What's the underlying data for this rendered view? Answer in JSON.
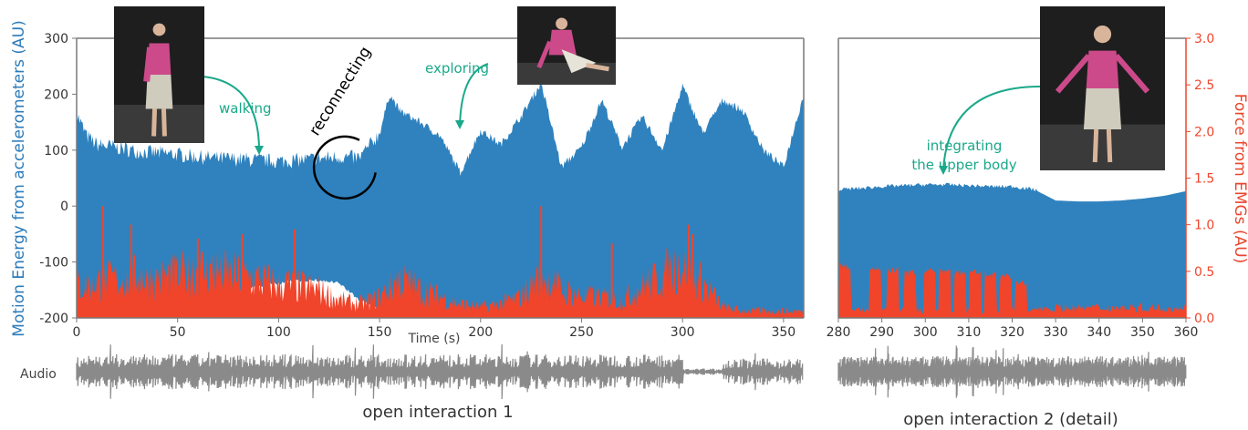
{
  "chart_data": [
    {
      "name": "open-interaction-1",
      "type": "area",
      "caption": "open interaction 1",
      "xlabel": "Time (s)",
      "ylabel_left": "Motion Energy from accelerometers (AU)",
      "xlim": [
        0,
        360
      ],
      "ylim_left": [
        -200,
        300
      ],
      "xticks": [
        0,
        50,
        100,
        150,
        200,
        250,
        300,
        350
      ],
      "yticks_left": [
        -200,
        -100,
        0,
        100,
        200,
        300
      ],
      "audio_label": "Audio",
      "series": [
        {
          "name": "Motion Energy",
          "color": "#2f82be",
          "x": [
            0,
            5,
            10,
            20,
            30,
            40,
            50,
            60,
            70,
            80,
            90,
            100,
            110,
            120,
            130,
            140,
            150,
            155,
            160,
            170,
            180,
            190,
            200,
            210,
            220,
            230,
            240,
            250,
            260,
            270,
            280,
            290,
            300,
            310,
            320,
            330,
            340,
            350,
            360
          ],
          "upper": [
            165,
            125,
            110,
            105,
            98,
            95,
            92,
            88,
            85,
            84,
            82,
            80,
            82,
            85,
            88,
            86,
            130,
            200,
            170,
            150,
            125,
            60,
            135,
            110,
            160,
            220,
            70,
            105,
            190,
            105,
            160,
            100,
            215,
            130,
            190,
            170,
            100,
            70,
            200
          ],
          "lower": [
            -200,
            -195,
            -195,
            -200,
            -190,
            -185,
            -175,
            -170,
            -160,
            -150,
            -140,
            -135,
            -130,
            -130,
            -135,
            -165,
            -180,
            -195,
            -200,
            -190,
            -195,
            -200,
            -190,
            -195,
            -195,
            -200,
            -190,
            -185,
            -190,
            -200,
            -200,
            -185,
            -190,
            -195,
            -195,
            -200,
            -190,
            -195,
            -200
          ]
        },
        {
          "name": "Force from EMGs",
          "color": "#f0452b",
          "x": [
            0,
            10,
            20,
            30,
            40,
            50,
            60,
            70,
            80,
            90,
            100,
            110,
            120,
            130,
            140,
            150,
            160,
            170,
            180,
            190,
            200,
            210,
            220,
            230,
            240,
            250,
            260,
            270,
            280,
            290,
            300,
            310,
            320,
            330,
            340,
            350,
            360
          ],
          "values": [
            0.45,
            0.5,
            0.55,
            0.6,
            0.55,
            0.6,
            0.7,
            0.65,
            0.6,
            0.55,
            0.5,
            0.45,
            0.4,
            0.25,
            0.2,
            0.3,
            0.55,
            0.4,
            0.3,
            0.2,
            0.15,
            0.2,
            0.3,
            0.6,
            0.4,
            0.3,
            0.3,
            0.25,
            0.45,
            0.6,
            0.8,
            0.5,
            0.15,
            0.1,
            0.1,
            0.1,
            0.1
          ],
          "peaks": [
            [
              13,
              1.2
            ],
            [
              27,
              1.0
            ],
            [
              60,
              0.85
            ],
            [
              82,
              0.9
            ],
            [
              108,
              0.95
            ],
            [
              230,
              1.2
            ],
            [
              265,
              0.8
            ],
            [
              303,
              1.0
            ],
            [
              305,
              0.9
            ]
          ]
        }
      ],
      "annotations": [
        {
          "text": "walking",
          "x": 88,
          "y": 95
        },
        {
          "text": "reconnecting",
          "x": 125,
          "y": 80
        },
        {
          "text": "exploring",
          "x": 190,
          "y": 135
        }
      ]
    },
    {
      "name": "open-interaction-2-detail",
      "type": "area",
      "caption": "open interaction 2 (detail)",
      "ylabel_right": "Force from EMGs (AU)",
      "xlim": [
        280,
        360
      ],
      "ylim_right": [
        0.0,
        3.0
      ],
      "xticks": [
        280,
        290,
        300,
        310,
        320,
        330,
        340,
        350,
        360
      ],
      "yticks_right": [
        0.0,
        0.5,
        1.0,
        1.5,
        2.0,
        2.5,
        3.0
      ],
      "series": [
        {
          "name": "Motion Energy",
          "color": "#2f82be",
          "x": [
            280,
            285,
            290,
            295,
            300,
            305,
            310,
            315,
            320,
            325,
            330,
            335,
            340,
            345,
            350,
            355,
            360
          ],
          "upper": [
            1.38,
            1.39,
            1.41,
            1.42,
            1.43,
            1.43,
            1.42,
            1.41,
            1.41,
            1.38,
            1.26,
            1.25,
            1.25,
            1.26,
            1.28,
            1.31,
            1.36
          ],
          "lower": [
            0.0,
            0.0,
            0.0,
            0.0,
            0.0,
            0.0,
            0.0,
            0.0,
            0.0,
            0.0,
            0.0,
            0.0,
            0.0,
            0.0,
            0.0,
            0.0,
            0.0
          ]
        },
        {
          "name": "Force from EMGs",
          "color": "#f0452b",
          "x_bursts": [
            281.5,
            288.5,
            292.5,
            296.5,
            301,
            304.5,
            308,
            311.5,
            315,
            318.5,
            322
          ],
          "burst_height": [
            0.6,
            0.57,
            0.55,
            0.52,
            0.55,
            0.55,
            0.52,
            0.52,
            0.5,
            0.48,
            0.4
          ],
          "baseline": 0.1
        }
      ],
      "annotations": [
        {
          "text": "integrating",
          "x": 304,
          "y": 2.25
        },
        {
          "text": "the upper body",
          "x": 304,
          "y": 2.0
        }
      ]
    }
  ],
  "colors": {
    "motion": "#2f82be",
    "emg": "#f0452b",
    "annotation": "#1aa88a",
    "audio": "#8a8a8a",
    "axis": "#7a7a7a"
  },
  "photos": [
    {
      "name": "walking-photo"
    },
    {
      "name": "exploring-photo"
    },
    {
      "name": "upper-body-photo"
    }
  ]
}
